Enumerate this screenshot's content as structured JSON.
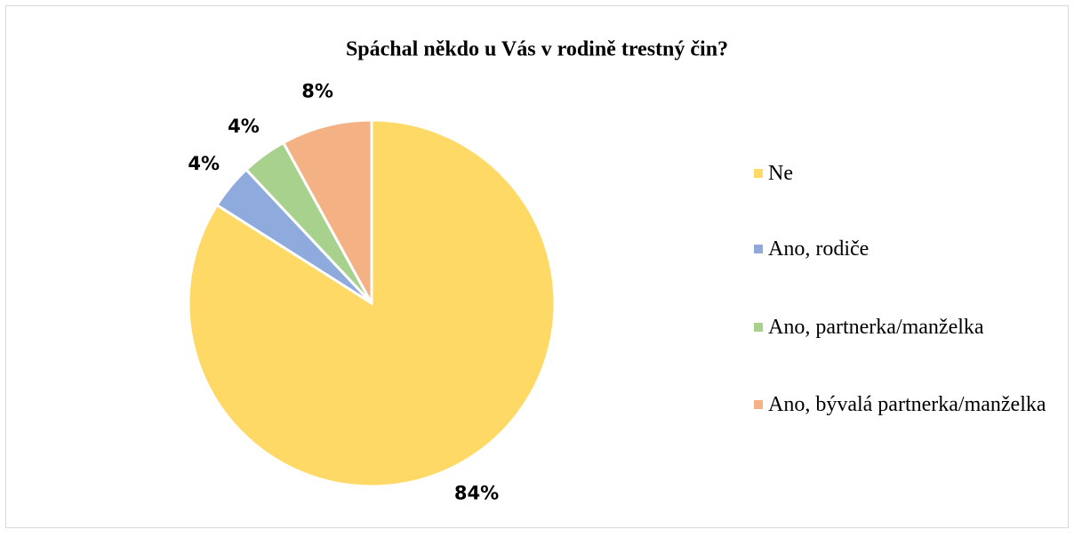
{
  "chart_data": {
    "type": "pie",
    "title": "Spáchal někdo u Vás v rodině trestný čin?",
    "categories": [
      "Ne",
      "Ano, rodiče",
      "Ano, partnerka/manželka",
      "Ano, bývalá partnerka/manželka"
    ],
    "values": [
      84,
      4,
      4,
      8
    ],
    "value_labels": [
      "84%",
      "4%",
      "4%",
      "8%"
    ],
    "colors": [
      "#ffd966",
      "#8faadc",
      "#a9d18e",
      "#f4b183"
    ],
    "legend": "right"
  }
}
